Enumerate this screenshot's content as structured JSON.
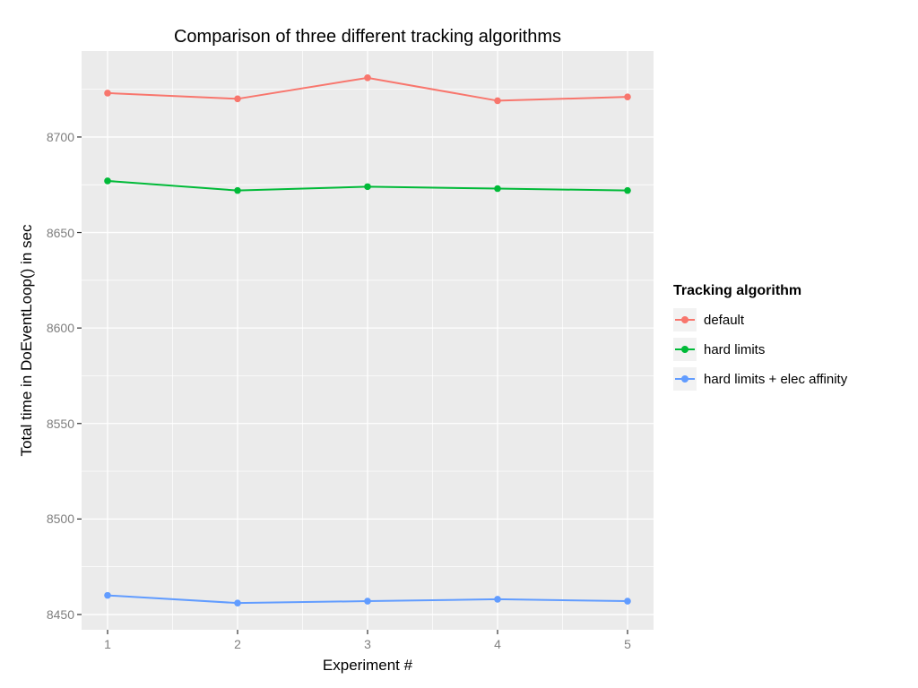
{
  "chart_data": {
    "type": "line",
    "title": "Comparison of three different tracking algorithms",
    "xlabel": "Experiment #",
    "ylabel": "Total time in DoEventLoop() in sec",
    "legend_title": "Tracking algorithm",
    "legend_position": "right",
    "x": [
      1,
      2,
      3,
      4,
      5
    ],
    "x_tick_labels": [
      "1",
      "2",
      "3",
      "4",
      "5"
    ],
    "y_ticks": [
      8450,
      8500,
      8550,
      8600,
      8650,
      8700
    ],
    "xlim": [
      0.8,
      5.2
    ],
    "ylim": [
      8442,
      8745
    ],
    "grid": true,
    "series": [
      {
        "name": "default",
        "color": "#F8766D",
        "values": [
          8723,
          8720,
          8731,
          8719,
          8721
        ]
      },
      {
        "name": "hard limits",
        "color": "#00BA38",
        "values": [
          8677,
          8672,
          8674,
          8673,
          8672
        ]
      },
      {
        "name": "hard limits + elec affinity",
        "color": "#619CFF",
        "values": [
          8460,
          8456,
          8457,
          8458,
          8457
        ]
      }
    ],
    "style": {
      "panel_bg": "#EBEBEB",
      "grid_major_color": "#FFFFFF",
      "grid_minor_color": "#FFFFFF",
      "tick_mark_color": "#333333",
      "tick_label_color": "#7F7F7F",
      "legend_key_bg": "#F2F2F2"
    }
  }
}
